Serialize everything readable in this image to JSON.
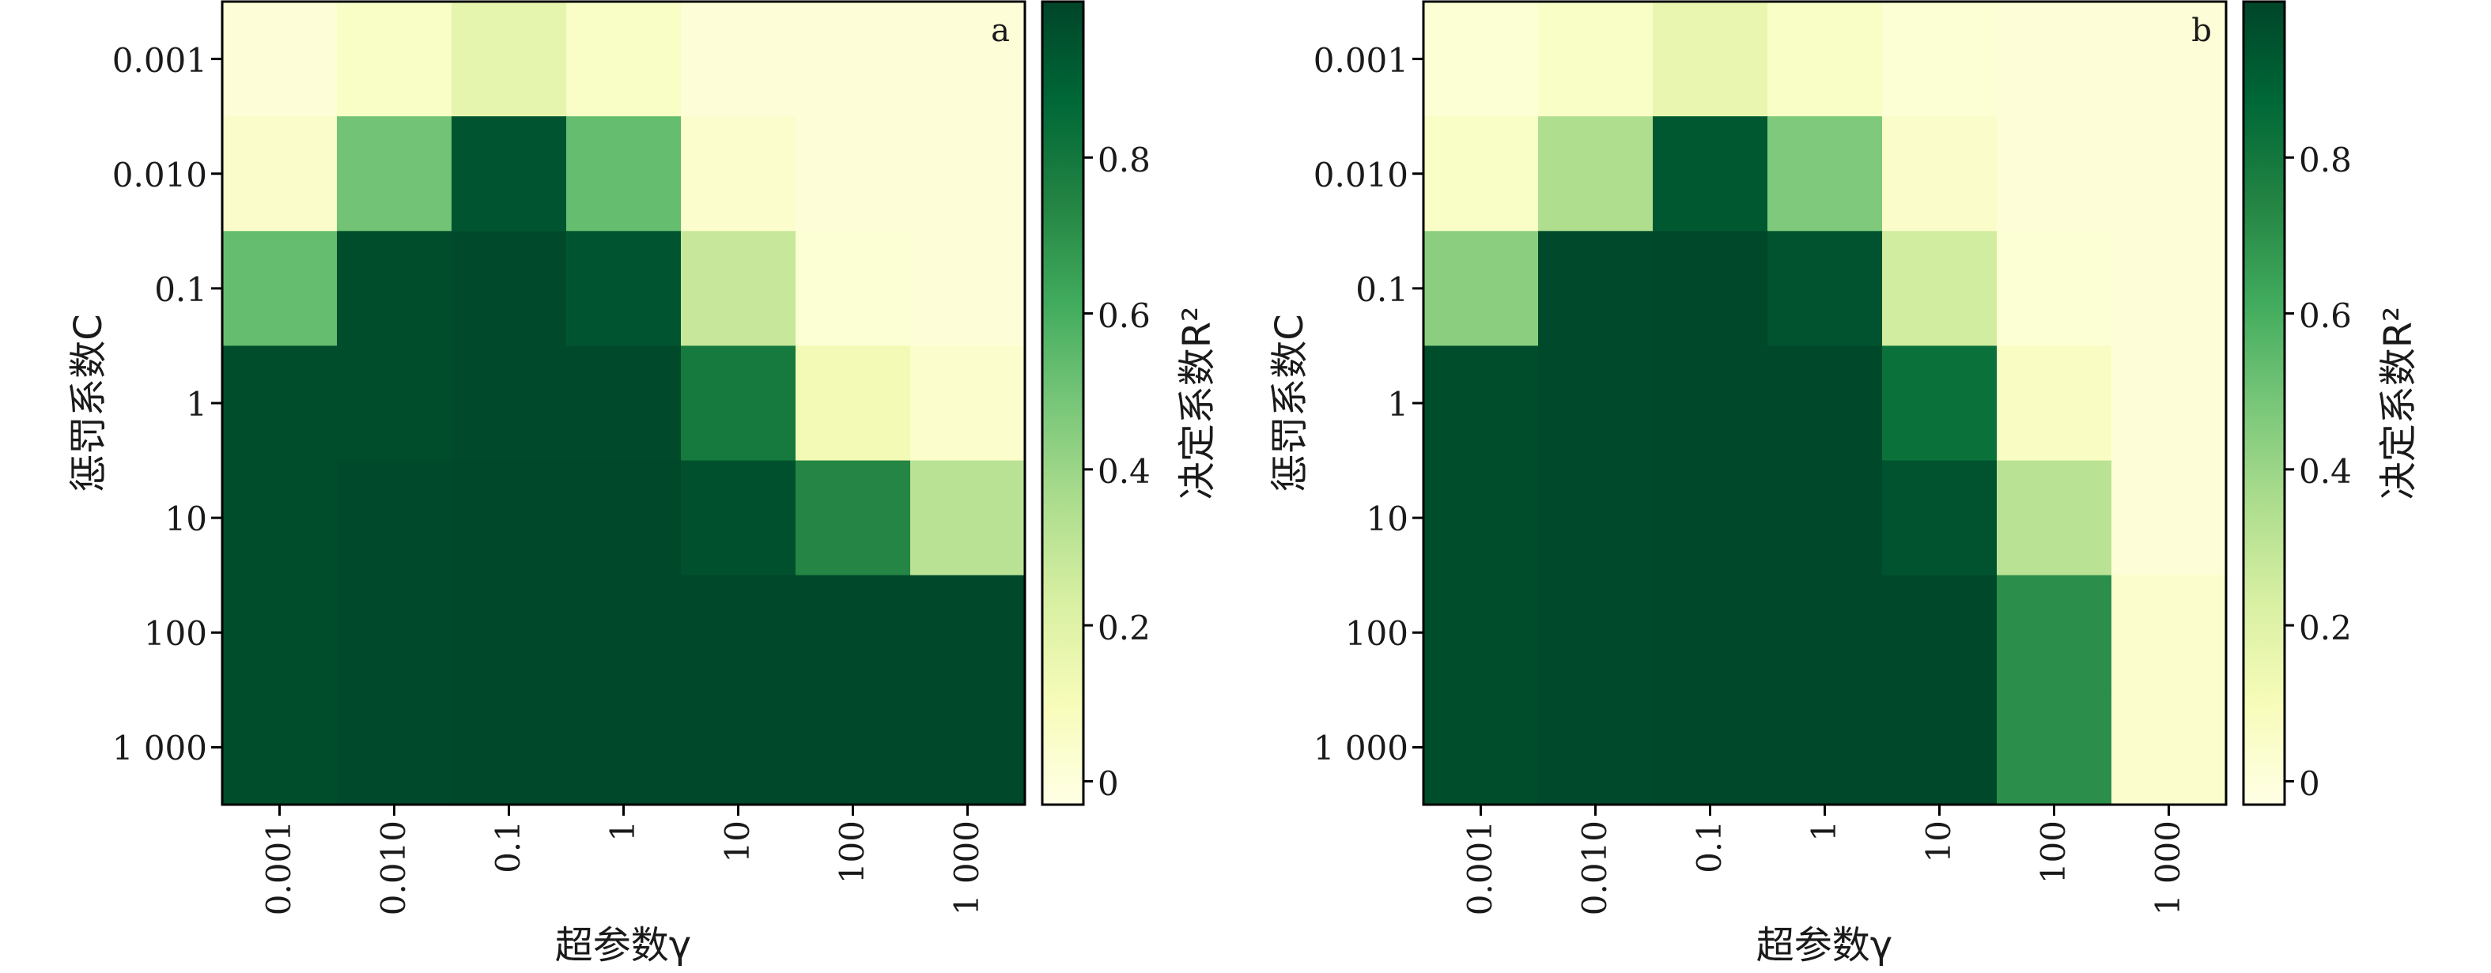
{
  "chart_data": [
    {
      "type": "heatmap",
      "panel_label": "a",
      "xlabel": "超参数γ",
      "ylabel": "惩罚系数C",
      "x_categories": [
        "0.001",
        "0.010",
        "0.1",
        "1",
        "10",
        "100",
        "1 000"
      ],
      "y_categories": [
        "0.001",
        "0.010",
        "0.1",
        "1",
        "10",
        "100",
        "1 000"
      ],
      "values": [
        [
          0.01,
          0.06,
          0.17,
          0.06,
          0.01,
          0.01,
          0.01
        ],
        [
          0.05,
          0.5,
          0.94,
          0.53,
          0.04,
          0.01,
          0.01
        ],
        [
          0.53,
          0.97,
          0.98,
          0.94,
          0.28,
          0.02,
          0.01
        ],
        [
          0.97,
          0.97,
          0.98,
          0.98,
          0.79,
          0.12,
          0.04
        ],
        [
          0.97,
          0.98,
          0.99,
          0.99,
          0.96,
          0.74,
          0.32
        ],
        [
          0.97,
          0.98,
          0.99,
          0.99,
          0.99,
          0.99,
          0.99
        ],
        [
          0.97,
          0.98,
          0.99,
          0.99,
          0.99,
          0.99,
          0.99
        ]
      ],
      "colorbar": {
        "label": "决定系数R²",
        "range": [
          -0.03,
          1.0
        ],
        "ticks": [
          "0",
          "0.2",
          "0.4",
          "0.6",
          "0.8"
        ],
        "tick_values": [
          0,
          0.2,
          0.4,
          0.6,
          0.8
        ]
      }
    },
    {
      "type": "heatmap",
      "panel_label": "b",
      "xlabel": "超参数γ",
      "ylabel": "惩罚系数C",
      "x_categories": [
        "0.001",
        "0.010",
        "0.1",
        "1",
        "10",
        "100",
        "1 000"
      ],
      "y_categories": [
        "0.001",
        "0.010",
        "0.1",
        "1",
        "10",
        "100",
        "1 000"
      ],
      "values": [
        [
          0.02,
          0.06,
          0.16,
          0.06,
          0.02,
          0.01,
          0.01
        ],
        [
          0.06,
          0.35,
          0.93,
          0.47,
          0.05,
          0.01,
          0.01
        ],
        [
          0.44,
          0.98,
          0.99,
          0.95,
          0.25,
          0.02,
          0.01
        ],
        [
          0.97,
          0.98,
          0.99,
          0.99,
          0.83,
          0.07,
          0.01
        ],
        [
          0.97,
          0.98,
          0.99,
          0.99,
          0.95,
          0.32,
          0.01
        ],
        [
          0.97,
          0.98,
          0.99,
          0.99,
          0.99,
          0.71,
          0.04
        ],
        [
          0.97,
          0.98,
          0.99,
          0.99,
          0.99,
          0.71,
          0.04
        ]
      ],
      "colorbar": {
        "label": "决定系数R²",
        "range": [
          -0.03,
          1.0
        ],
        "ticks": [
          "0",
          "0.2",
          "0.4",
          "0.6",
          "0.8"
        ],
        "tick_values": [
          0,
          0.2,
          0.4,
          0.6,
          0.8
        ]
      }
    }
  ]
}
